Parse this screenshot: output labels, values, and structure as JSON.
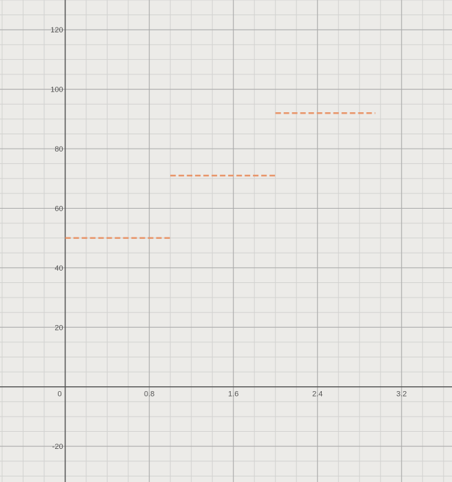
{
  "chart_data": {
    "type": "line",
    "title": "",
    "xlabel": "",
    "ylabel": "",
    "xlim": [
      -0.62,
      3.68
    ],
    "ylim": [
      -32,
      130
    ],
    "grid": true,
    "x_ticks": [
      0,
      0.8,
      1.6,
      2.4,
      3.2
    ],
    "x_tick_labels": [
      "0",
      "0.8",
      "1.6",
      "2.4",
      "3.2"
    ],
    "y_ticks": [
      -20,
      20,
      40,
      60,
      80,
      100,
      120
    ],
    "y_tick_labels": [
      "-20",
      "20",
      "40",
      "60",
      "80",
      "100",
      "120"
    ],
    "series": [
      {
        "style": "dashed",
        "color": "#e8956a",
        "segments": [
          {
            "x": [
              0,
              1
            ],
            "y": 50
          },
          {
            "x": [
              1,
              2
            ],
            "y": 71
          },
          {
            "x": [
              2,
              2.95
            ],
            "y": 92
          }
        ]
      }
    ],
    "colors": {
      "axis": "#555555",
      "major_grid": "#a9a9a9",
      "minor_grid": "#d2d2d0",
      "background": "#ecebe8"
    }
  }
}
